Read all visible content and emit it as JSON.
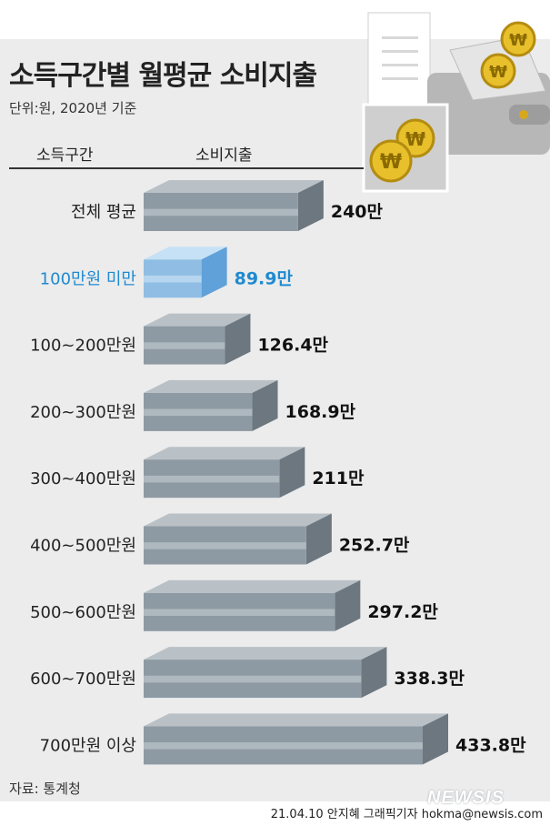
{
  "header": {
    "title": "소득구간별 월평균 소비지출",
    "unit_note": "단위:원, 2020년 기준",
    "col_range": "소득구간",
    "col_spend": "소비지출"
  },
  "footer": {
    "source": "자료: 통계청",
    "credit": "21.04.10 안지혜 그래픽기자 hokma@newsis.com",
    "watermark": "NEWSIS"
  },
  "colors": {
    "bar_front": "#8e9aa3",
    "bar_top": "#b9c1c7",
    "bar_side": "#6c7780",
    "highlight_front": "#8fbde3",
    "highlight_top": "#c6e1f5",
    "highlight_side": "#5fa1d8",
    "highlight_text": "#1f8ad0"
  },
  "chart_data": {
    "type": "bar",
    "orientation": "horizontal",
    "categories": [
      "전체 평균",
      "100만원 미만",
      "100~200만원",
      "200~300만원",
      "300~400만원",
      "400~500만원",
      "500~600만원",
      "600~700만원",
      "700만원 이상"
    ],
    "values": [
      240,
      89.9,
      126.4,
      168.9,
      211,
      252.7,
      297.2,
      338.3,
      433.8
    ],
    "value_labels": [
      "240만",
      "89.9만",
      "126.4만",
      "168.9만",
      "211만",
      "252.7만",
      "297.2만",
      "338.3만",
      "433.8만"
    ],
    "highlight_index": 1,
    "title": "소득구간별 월평균 소비지출",
    "xlabel": "소비지출",
    "ylabel": "소득구간",
    "xlim": [
      0,
      433.8
    ]
  }
}
